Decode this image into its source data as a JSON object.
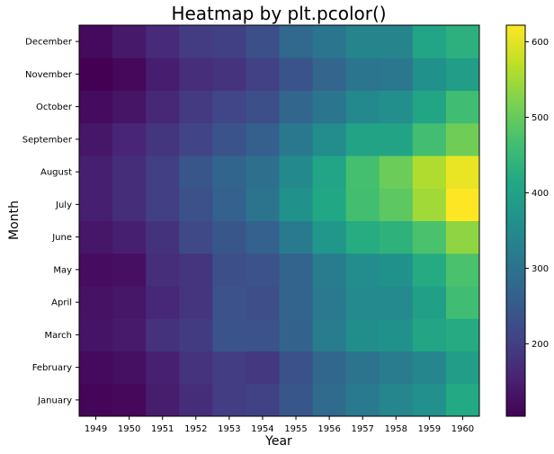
{
  "chart_data": {
    "type": "heatmap",
    "title": "Heatmap by plt.pcolor()",
    "xlabel": "Year",
    "ylabel": "Month",
    "x": [
      "1949",
      "1950",
      "1951",
      "1952",
      "1953",
      "1954",
      "1955",
      "1956",
      "1957",
      "1958",
      "1959",
      "1960"
    ],
    "y": [
      "January",
      "February",
      "March",
      "April",
      "May",
      "June",
      "July",
      "August",
      "September",
      "October",
      "November",
      "December"
    ],
    "values": [
      [
        112,
        115,
        145,
        171,
        196,
        204,
        242,
        284,
        315,
        340,
        360,
        417
      ],
      [
        118,
        126,
        150,
        180,
        196,
        188,
        233,
        277,
        301,
        318,
        342,
        391
      ],
      [
        132,
        141,
        178,
        193,
        236,
        235,
        267,
        317,
        356,
        362,
        406,
        419
      ],
      [
        129,
        135,
        163,
        181,
        235,
        227,
        269,
        313,
        348,
        348,
        396,
        461
      ],
      [
        121,
        125,
        172,
        183,
        229,
        234,
        270,
        318,
        355,
        363,
        420,
        472
      ],
      [
        135,
        149,
        178,
        218,
        243,
        264,
        315,
        374,
        422,
        435,
        472,
        535
      ],
      [
        148,
        170,
        199,
        230,
        264,
        302,
        364,
        413,
        465,
        491,
        548,
        622
      ],
      [
        148,
        170,
        199,
        242,
        272,
        293,
        347,
        405,
        467,
        505,
        559,
        606
      ],
      [
        136,
        158,
        184,
        209,
        237,
        259,
        312,
        355,
        404,
        404,
        463,
        508
      ],
      [
        119,
        133,
        162,
        191,
        211,
        229,
        274,
        306,
        347,
        359,
        407,
        461
      ],
      [
        104,
        114,
        146,
        172,
        180,
        203,
        237,
        271,
        305,
        310,
        362,
        390
      ],
      [
        118,
        140,
        166,
        194,
        201,
        229,
        278,
        306,
        336,
        337,
        405,
        432
      ]
    ],
    "colorbar": {
      "ticks": [
        200,
        300,
        400,
        500,
        600
      ],
      "range": [
        104,
        622
      ],
      "colormap": "viridis"
    },
    "grid": false
  }
}
